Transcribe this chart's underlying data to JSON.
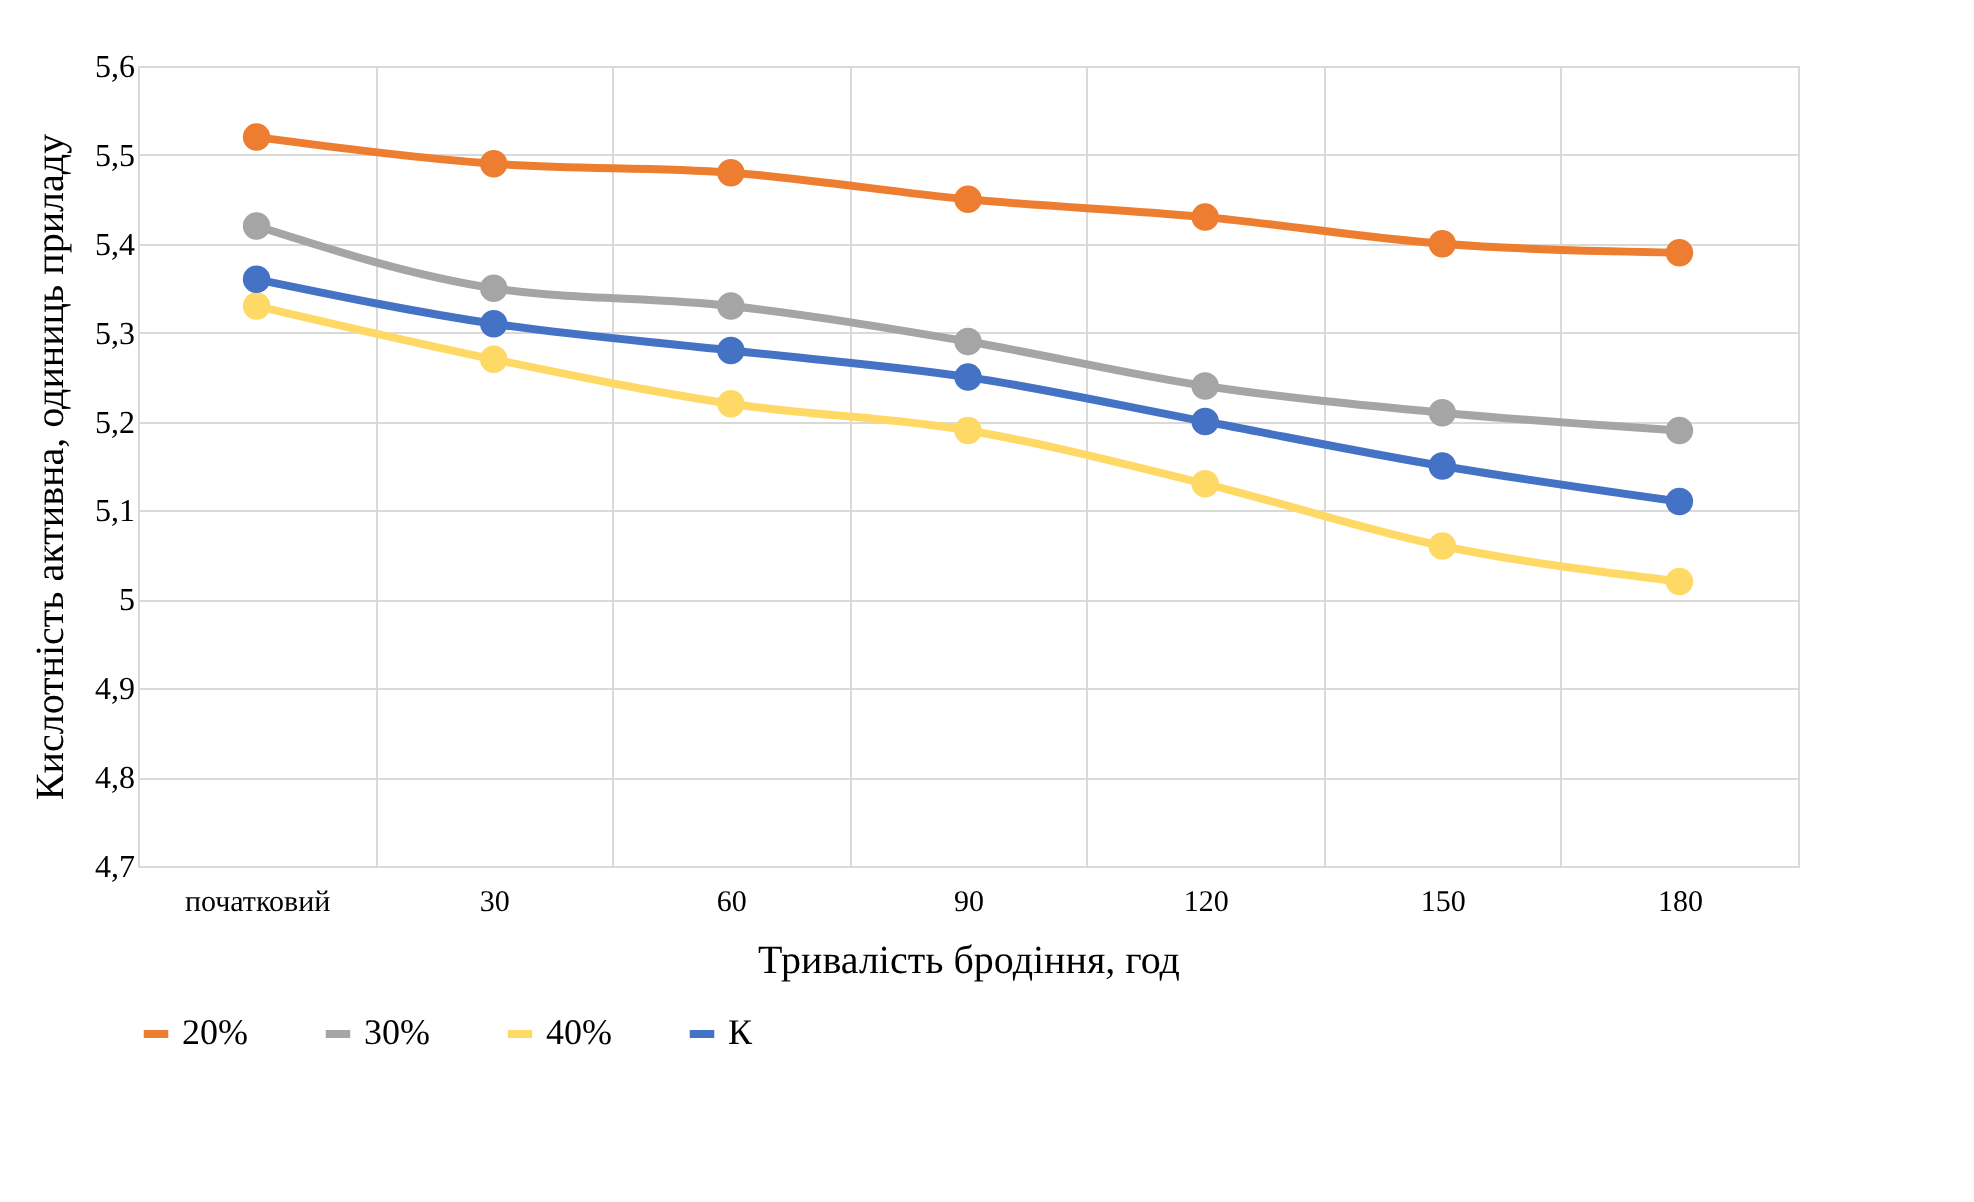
{
  "chart_data": {
    "type": "line",
    "xlabel": "Тривалість бродіння, год",
    "ylabel": "Кислотність активна, одиниць приладу",
    "categories": [
      "початковий",
      "30",
      "60",
      "90",
      "120",
      "150",
      "180"
    ],
    "series": [
      {
        "name": "20%",
        "color": "#ed7d31",
        "values": [
          5.52,
          5.49,
          5.48,
          5.45,
          5.43,
          5.4,
          5.39
        ]
      },
      {
        "name": "30%",
        "color": "#a5a5a5",
        "values": [
          5.42,
          5.35,
          5.33,
          5.29,
          5.24,
          5.21,
          5.19
        ]
      },
      {
        "name": "40%",
        "color": "#ffd966",
        "values": [
          5.33,
          5.27,
          5.22,
          5.19,
          5.13,
          5.06,
          5.02
        ]
      },
      {
        "name": "К",
        "color": "#4472c4",
        "values": [
          5.36,
          5.31,
          5.28,
          5.25,
          5.2,
          5.15,
          5.11
        ]
      }
    ],
    "ylim": [
      4.7,
      5.6
    ],
    "yticks": [
      {
        "value": 4.7,
        "label": "4,7"
      },
      {
        "value": 4.8,
        "label": "4,8"
      },
      {
        "value": 4.9,
        "label": "4,9"
      },
      5,
      {
        "value": 5.1,
        "label": "5,1"
      },
      {
        "value": 5.2,
        "label": "5,2"
      },
      {
        "value": 5.3,
        "label": "5,3"
      },
      {
        "value": 5.4,
        "label": "5,4"
      },
      {
        "value": 5.5,
        "label": "5,5"
      },
      {
        "value": 5.6,
        "label": "5,6"
      }
    ],
    "grid": true,
    "legend": "bottom",
    "marker": "circle",
    "line_style": "solid"
  }
}
